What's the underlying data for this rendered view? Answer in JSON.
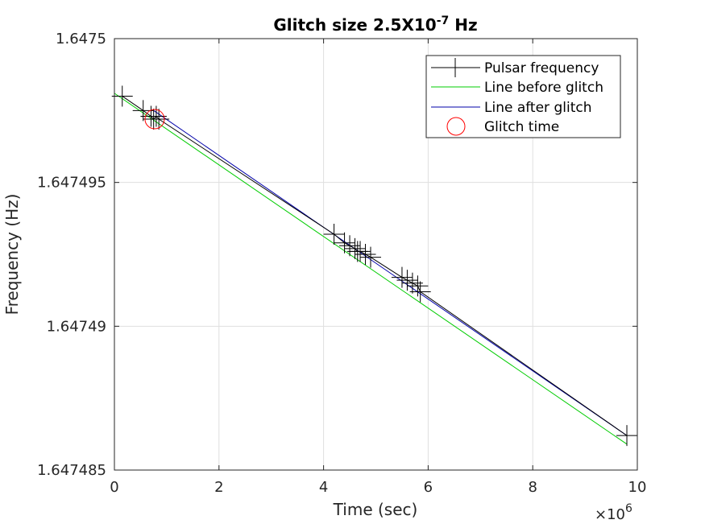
{
  "chart_data": {
    "type": "scatter",
    "title": {
      "main": "Glitch size 2.5X10",
      "superscript": "-7",
      "unit": " Hz"
    },
    "xlabel": "Time (sec)",
    "ylabel": "Frequency (Hz)",
    "x_exponent": {
      "base": "×10",
      "power": "6"
    },
    "xlim": [
      0,
      10
    ],
    "ylim": [
      1.647485,
      1.6475
    ],
    "x_ticks": [
      0,
      2,
      4,
      6,
      8,
      10
    ],
    "x_tick_labels": [
      "0",
      "2",
      "4",
      "6",
      "8",
      "10"
    ],
    "y_ticks": [
      1.647485,
      1.64749,
      1.647495,
      1.6475
    ],
    "y_tick_labels": [
      "1.647485",
      "1.64749",
      "1.647495",
      "1.6475"
    ],
    "grid": true,
    "legend_position": "top-right",
    "series": [
      {
        "name": "Pulsar frequency",
        "kind": "markers",
        "marker": "plus",
        "color": "#000000",
        "x": [
          0.15,
          0.55,
          0.7,
          0.75,
          0.8,
          0.85,
          4.2,
          4.4,
          4.5,
          4.6,
          4.65,
          4.7,
          4.8,
          4.9,
          5.5,
          5.6,
          5.7,
          5.8,
          5.85,
          9.8
        ],
        "y": [
          1.647498,
          1.6474975,
          1.6474973,
          1.6474972,
          1.6474973,
          1.6474972,
          1.6474932,
          1.6474929,
          1.6474928,
          1.6474927,
          1.6474926,
          1.6474926,
          1.6474925,
          1.6474924,
          1.6474917,
          1.6474916,
          1.6474915,
          1.6474914,
          1.6474912,
          1.6474862
        ]
      },
      {
        "name": "Line before glitch",
        "kind": "line",
        "color": "#00cc00",
        "x": [
          0,
          9.8
        ],
        "y": [
          1.6474981,
          1.6474859
        ]
      },
      {
        "name": "Line after glitch",
        "kind": "line",
        "color": "#0000aa",
        "x": [
          0.75,
          9.8
        ],
        "y": [
          1.6474975,
          1.6474862
        ]
      },
      {
        "name": "Glitch time",
        "kind": "marker",
        "marker": "circle",
        "color": "#ff0000",
        "x": [
          0.77
        ],
        "y": [
          1.6474972
        ]
      }
    ]
  }
}
